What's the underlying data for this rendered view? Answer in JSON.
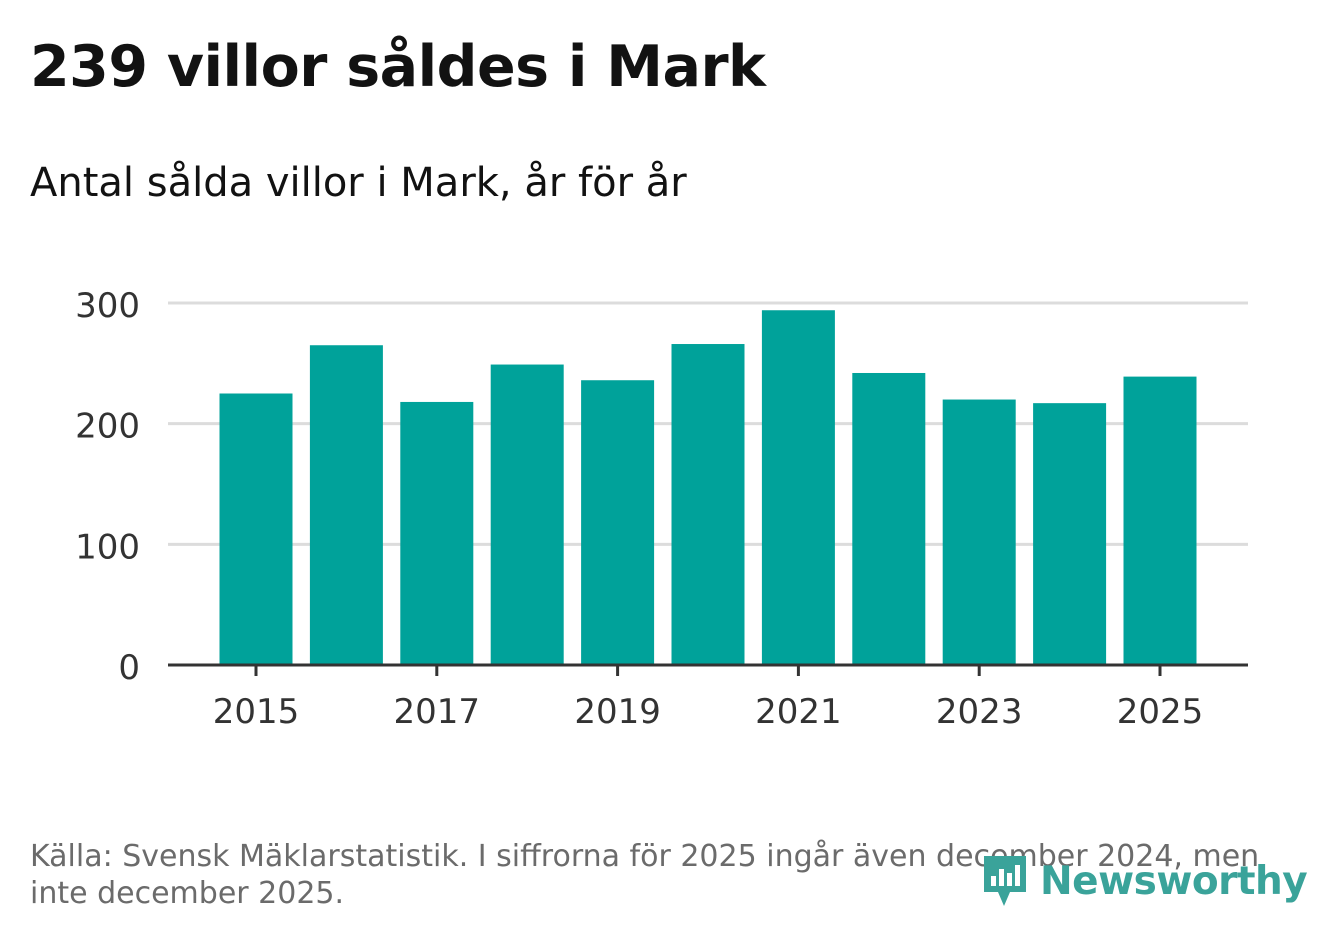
{
  "header": {
    "title": "239 villor såldes i Mark",
    "subtitle": "Antal sålda villor i Mark, år för år"
  },
  "footer": {
    "source": "Källa: Svensk Mäklarstatistik. I siffrorna för 2025 ingår även december 2024, men inte december 2025."
  },
  "brand": {
    "name": "Newsworthy",
    "color": "#3aa39a",
    "icon": "newsworthy-logo-icon"
  },
  "colors": {
    "bar": "#00a29a",
    "grid": "#dcdcdc",
    "axis": "#333333",
    "tick_text": "#333333"
  },
  "chart_data": {
    "type": "bar",
    "title": "239 villor såldes i Mark",
    "subtitle": "Antal sålda villor i Mark, år för år",
    "categories": [
      "2015",
      "2016",
      "2017",
      "2018",
      "2019",
      "2020",
      "2021",
      "2022",
      "2023",
      "2024",
      "2025"
    ],
    "values": [
      225,
      265,
      218,
      249,
      236,
      266,
      294,
      242,
      220,
      217,
      239
    ],
    "x_tick_labels": [
      "2015",
      "2017",
      "2019",
      "2021",
      "2023",
      "2025"
    ],
    "y_ticks": [
      "0",
      "100",
      "200",
      "300"
    ],
    "ylim": [
      0,
      300
    ],
    "xlabel": "",
    "ylabel": "",
    "grid": true
  }
}
